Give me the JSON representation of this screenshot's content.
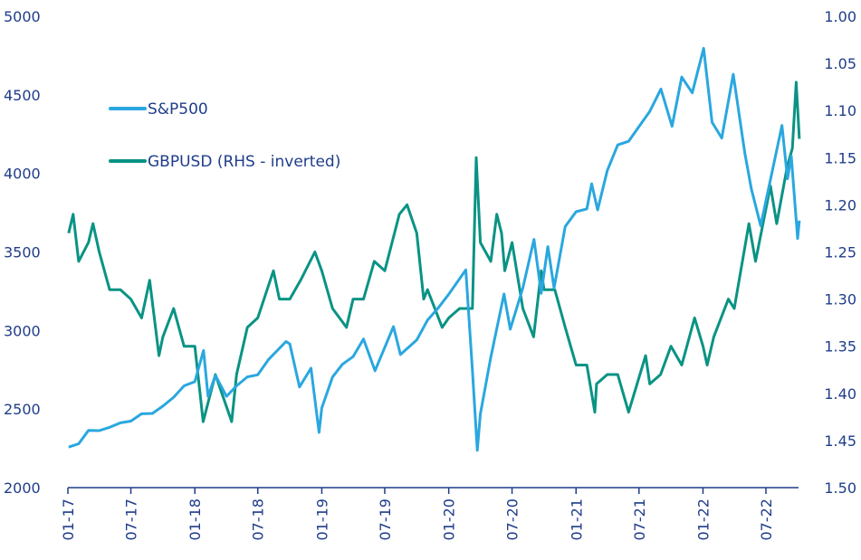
{
  "chart_data": {
    "type": "line",
    "title": "",
    "xlabel": "",
    "ylabel": "",
    "y_left_lim": [
      2000,
      5000
    ],
    "y_left_ticks": [
      "5000",
      "4500",
      "4000",
      "3500",
      "3000",
      "2500",
      "2000"
    ],
    "y_right_lim": [
      1.0,
      1.5
    ],
    "y_right_inverted": true,
    "y_right_ticks": [
      "1.00",
      "1.05",
      "1.10",
      "1.15",
      "1.20",
      "1.25",
      "1.30",
      "1.35",
      "1.40",
      "1.45",
      "1.50"
    ],
    "x_ticks": [
      "01-17",
      "07-17",
      "01-18",
      "07-18",
      "01-19",
      "07-19",
      "01-20",
      "07-20",
      "01-21",
      "07-21",
      "01-22",
      "07-22"
    ],
    "x_tick_dates": [
      "2017-01-01",
      "2017-07-01",
      "2018-01-01",
      "2018-07-01",
      "2019-01-01",
      "2019-07-01",
      "2020-01-01",
      "2020-07-01",
      "2021-01-01",
      "2021-07-01",
      "2022-01-01",
      "2022-07-01"
    ],
    "grid": false,
    "legend_placement": "top-left",
    "series": [
      {
        "name": "S&P500",
        "axis": "left",
        "color": "#2aa7df",
        "points": [
          [
            "2017-01-03",
            2258
          ],
          [
            "2017-02-01",
            2279
          ],
          [
            "2017-03-01",
            2364
          ],
          [
            "2017-04-01",
            2363
          ],
          [
            "2017-05-01",
            2384
          ],
          [
            "2017-06-01",
            2412
          ],
          [
            "2017-07-01",
            2423
          ],
          [
            "2017-08-01",
            2470
          ],
          [
            "2017-09-01",
            2472
          ],
          [
            "2017-10-01",
            2519
          ],
          [
            "2017-11-01",
            2575
          ],
          [
            "2017-12-01",
            2648
          ],
          [
            "2018-01-01",
            2674
          ],
          [
            "2018-01-26",
            2873
          ],
          [
            "2018-02-08",
            2581
          ],
          [
            "2018-03-01",
            2714
          ],
          [
            "2018-04-02",
            2581
          ],
          [
            "2018-05-01",
            2648
          ],
          [
            "2018-06-01",
            2705
          ],
          [
            "2018-07-01",
            2718
          ],
          [
            "2018-08-01",
            2816
          ],
          [
            "2018-09-20",
            2930
          ],
          [
            "2018-10-01",
            2914
          ],
          [
            "2018-10-29",
            2641
          ],
          [
            "2018-12-01",
            2760
          ],
          [
            "2018-12-24",
            2351
          ],
          [
            "2019-01-01",
            2507
          ],
          [
            "2019-02-01",
            2704
          ],
          [
            "2019-03-01",
            2784
          ],
          [
            "2019-04-01",
            2834
          ],
          [
            "2019-05-01",
            2946
          ],
          [
            "2019-06-03",
            2744
          ],
          [
            "2019-07-26",
            3025
          ],
          [
            "2019-08-15",
            2847
          ],
          [
            "2019-10-01",
            2940
          ],
          [
            "2019-11-01",
            3066
          ],
          [
            "2019-12-01",
            3141
          ],
          [
            "2020-01-01",
            3231
          ],
          [
            "2020-02-19",
            3386
          ],
          [
            "2020-03-09",
            2746
          ],
          [
            "2020-03-23",
            2237
          ],
          [
            "2020-04-01",
            2470
          ],
          [
            "2020-05-01",
            2830
          ],
          [
            "2020-06-08",
            3232
          ],
          [
            "2020-06-26",
            3009
          ],
          [
            "2020-08-01",
            3271
          ],
          [
            "2020-09-02",
            3580
          ],
          [
            "2020-09-23",
            3237
          ],
          [
            "2020-10-12",
            3534
          ],
          [
            "2020-10-30",
            3270
          ],
          [
            "2020-12-01",
            3662
          ],
          [
            "2021-01-01",
            3756
          ],
          [
            "2021-02-01",
            3774
          ],
          [
            "2021-02-15",
            3934
          ],
          [
            "2021-03-04",
            3768
          ],
          [
            "2021-04-01",
            4019
          ],
          [
            "2021-05-01",
            4181
          ],
          [
            "2021-06-01",
            4204
          ],
          [
            "2021-07-01",
            4298
          ],
          [
            "2021-08-01",
            4395
          ],
          [
            "2021-09-02",
            4537
          ],
          [
            "2021-10-04",
            4300
          ],
          [
            "2021-11-01",
            4613
          ],
          [
            "2021-12-01",
            4513
          ],
          [
            "2022-01-03",
            4796
          ],
          [
            "2022-01-27",
            4326
          ],
          [
            "2022-02-24",
            4225
          ],
          [
            "2022-03-29",
            4631
          ],
          [
            "2022-05-01",
            4132
          ],
          [
            "2022-05-20",
            3901
          ],
          [
            "2022-06-16",
            3667
          ],
          [
            "2022-07-01",
            3825
          ],
          [
            "2022-08-16",
            4305
          ],
          [
            "2022-09-01",
            3966
          ],
          [
            "2022-09-12",
            4110
          ],
          [
            "2022-09-30",
            3586
          ],
          [
            "2022-10-05",
            3700
          ]
        ]
      },
      {
        "name": "GBPUSD (RHS - inverted)",
        "axis": "right",
        "color": "#0a9384",
        "points": [
          [
            "2017-01-03",
            1.23
          ],
          [
            "2017-01-16",
            1.21
          ],
          [
            "2017-02-01",
            1.26
          ],
          [
            "2017-03-01",
            1.24
          ],
          [
            "2017-03-14",
            1.22
          ],
          [
            "2017-04-01",
            1.25
          ],
          [
            "2017-05-01",
            1.29
          ],
          [
            "2017-06-01",
            1.29
          ],
          [
            "2017-07-01",
            1.3
          ],
          [
            "2017-08-01",
            1.32
          ],
          [
            "2017-08-24",
            1.28
          ],
          [
            "2017-09-20",
            1.36
          ],
          [
            "2017-10-01",
            1.34
          ],
          [
            "2017-11-01",
            1.31
          ],
          [
            "2017-12-01",
            1.35
          ],
          [
            "2018-01-01",
            1.35
          ],
          [
            "2018-01-25",
            1.43
          ],
          [
            "2018-02-15",
            1.4
          ],
          [
            "2018-03-01",
            1.38
          ],
          [
            "2018-04-17",
            1.43
          ],
          [
            "2018-05-01",
            1.38
          ],
          [
            "2018-06-01",
            1.33
          ],
          [
            "2018-07-01",
            1.32
          ],
          [
            "2018-08-15",
            1.27
          ],
          [
            "2018-09-01",
            1.3
          ],
          [
            "2018-10-01",
            1.3
          ],
          [
            "2018-11-01",
            1.28
          ],
          [
            "2018-12-12",
            1.25
          ],
          [
            "2019-01-01",
            1.27
          ],
          [
            "2019-02-01",
            1.31
          ],
          [
            "2019-03-13",
            1.33
          ],
          [
            "2019-04-01",
            1.3
          ],
          [
            "2019-05-01",
            1.3
          ],
          [
            "2019-06-01",
            1.26
          ],
          [
            "2019-07-01",
            1.27
          ],
          [
            "2019-08-12",
            1.21
          ],
          [
            "2019-09-03",
            1.2
          ],
          [
            "2019-10-01",
            1.23
          ],
          [
            "2019-10-21",
            1.3
          ],
          [
            "2019-11-01",
            1.29
          ],
          [
            "2019-12-13",
            1.33
          ],
          [
            "2020-01-01",
            1.32
          ],
          [
            "2020-02-01",
            1.31
          ],
          [
            "2020-03-09",
            1.31
          ],
          [
            "2020-03-20",
            1.15
          ],
          [
            "2020-04-01",
            1.24
          ],
          [
            "2020-05-01",
            1.26
          ],
          [
            "2020-05-18",
            1.21
          ],
          [
            "2020-06-01",
            1.23
          ],
          [
            "2020-06-10",
            1.27
          ],
          [
            "2020-07-01",
            1.24
          ],
          [
            "2020-08-01",
            1.31
          ],
          [
            "2020-09-01",
            1.34
          ],
          [
            "2020-09-23",
            1.27
          ],
          [
            "2020-10-01",
            1.29
          ],
          [
            "2020-11-01",
            1.29
          ],
          [
            "2020-12-01",
            1.33
          ],
          [
            "2021-01-01",
            1.37
          ],
          [
            "2021-02-01",
            1.37
          ],
          [
            "2021-02-24",
            1.42
          ],
          [
            "2021-03-01",
            1.39
          ],
          [
            "2021-04-01",
            1.38
          ],
          [
            "2021-05-01",
            1.38
          ],
          [
            "2021-06-01",
            1.42
          ],
          [
            "2021-07-20",
            1.36
          ],
          [
            "2021-08-01",
            1.39
          ],
          [
            "2021-09-01",
            1.38
          ],
          [
            "2021-10-01",
            1.35
          ],
          [
            "2021-11-01",
            1.37
          ],
          [
            "2021-12-08",
            1.32
          ],
          [
            "2022-01-01",
            1.35
          ],
          [
            "2022-01-13",
            1.37
          ],
          [
            "2022-02-01",
            1.34
          ],
          [
            "2022-03-15",
            1.3
          ],
          [
            "2022-04-01",
            1.31
          ],
          [
            "2022-05-13",
            1.22
          ],
          [
            "2022-06-01",
            1.26
          ],
          [
            "2022-07-14",
            1.18
          ],
          [
            "2022-08-01",
            1.22
          ],
          [
            "2022-08-31",
            1.16
          ],
          [
            "2022-09-15",
            1.14
          ],
          [
            "2022-09-26",
            1.07
          ],
          [
            "2022-10-05",
            1.13
          ]
        ]
      }
    ]
  }
}
